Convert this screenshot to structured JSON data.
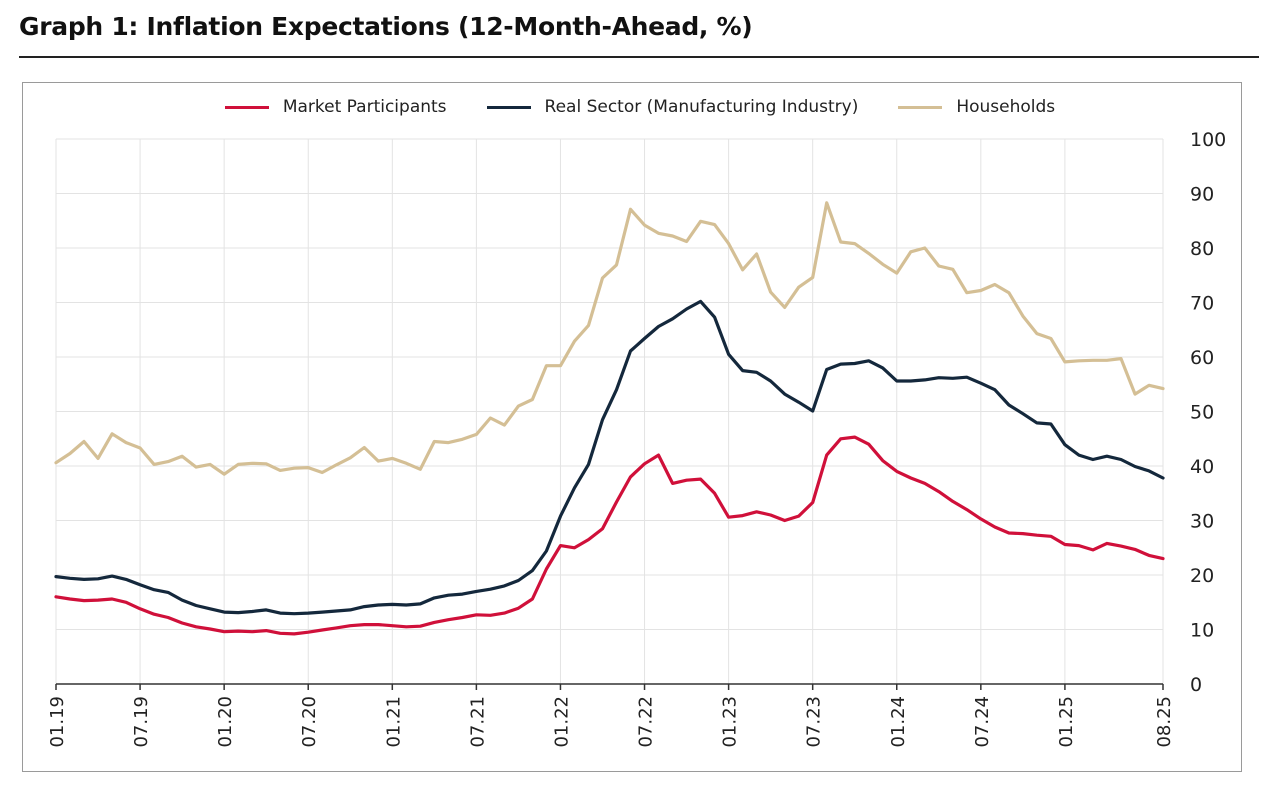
{
  "title": "Graph 1: Inflation Expectations (12-Month-Ahead, %)",
  "chart_data": {
    "type": "line",
    "title": "Graph 1: Inflation Expectations (12-Month-Ahead, %)",
    "xlabel": "",
    "ylabel": "",
    "ylim": [
      0,
      100
    ],
    "yticks": [
      "0",
      "10",
      "20",
      "30",
      "40",
      "50",
      "60",
      "70",
      "80",
      "90",
      "100"
    ],
    "xticks": [
      "01.19",
      "07.19",
      "01.20",
      "07.20",
      "01.21",
      "07.21",
      "01.22",
      "07.22",
      "01.23",
      "07.23",
      "01.24",
      "07.24",
      "01.25",
      "08.25"
    ],
    "grid": true,
    "legend_position": "top-center",
    "series": [
      {
        "name": "Market Participants",
        "color": "#d0103a",
        "values": [
          16.0,
          15.6,
          15.3,
          15.4,
          15.6,
          15.0,
          13.8,
          12.8,
          12.2,
          11.2,
          10.5,
          10.1,
          9.6,
          9.7,
          9.6,
          9.8,
          9.3,
          9.2,
          9.5,
          9.9,
          10.3,
          10.7,
          10.9,
          10.9,
          10.7,
          10.5,
          10.6,
          11.3,
          11.8,
          12.2,
          12.7,
          12.6,
          13.0,
          13.9,
          15.6,
          21.1,
          25.4,
          25.0,
          26.5,
          28.5,
          33.4,
          38.0,
          40.4,
          42.0,
          36.8,
          37.4,
          37.6,
          35.0,
          30.6,
          30.9,
          31.6,
          31.0,
          30.0,
          30.8,
          33.3,
          42.0,
          45.0,
          45.3,
          44.0,
          41.0,
          39.0,
          37.8,
          36.8,
          35.3,
          33.5,
          32.0,
          30.3,
          28.8,
          27.7,
          27.6,
          27.3,
          27.1,
          25.6,
          25.4,
          24.6,
          25.8,
          25.3,
          24.7,
          23.6,
          23.0
        ]
      },
      {
        "name": "Real Sector (Manufacturing Industry)",
        "color": "#14283c",
        "values": [
          19.7,
          19.4,
          19.2,
          19.3,
          19.8,
          19.2,
          18.2,
          17.3,
          16.8,
          15.4,
          14.4,
          13.8,
          13.2,
          13.1,
          13.3,
          13.6,
          13.0,
          12.9,
          13.0,
          13.2,
          13.4,
          13.6,
          14.2,
          14.5,
          14.6,
          14.5,
          14.7,
          15.8,
          16.3,
          16.5,
          17.0,
          17.4,
          18.0,
          19.0,
          20.8,
          24.4,
          30.8,
          36.0,
          40.3,
          48.5,
          54.0,
          61.1,
          63.4,
          65.6,
          67.0,
          68.8,
          70.2,
          67.3,
          60.5,
          57.5,
          57.2,
          55.6,
          53.2,
          51.7,
          50.1,
          57.7,
          58.7,
          58.8,
          59.3,
          58.0,
          55.6,
          55.6,
          55.8,
          56.2,
          56.1,
          56.3,
          55.2,
          54.0,
          51.2,
          49.6,
          47.9,
          47.7,
          43.9,
          42.0,
          41.2,
          41.8,
          41.2,
          39.9,
          39.1,
          37.8
        ]
      },
      {
        "name": "Households",
        "color": "#d4bf95",
        "values": [
          40.6,
          42.3,
          44.5,
          41.4,
          45.9,
          44.3,
          43.3,
          40.3,
          40.8,
          41.8,
          39.8,
          40.3,
          38.5,
          40.3,
          40.5,
          40.4,
          39.2,
          39.6,
          39.7,
          38.8,
          40.2,
          41.5,
          43.4,
          40.9,
          41.4,
          40.5,
          39.4,
          44.5,
          44.3,
          44.9,
          45.8,
          48.8,
          47.5,
          51.0,
          52.2,
          58.4,
          58.4,
          62.9,
          65.8,
          74.5,
          76.9,
          87.1,
          84.2,
          82.7,
          82.2,
          81.2,
          84.9,
          84.3,
          80.8,
          76.0,
          78.9,
          71.9,
          69.1,
          72.8,
          74.6,
          88.3,
          81.1,
          80.8,
          79.0,
          77.0,
          75.4,
          79.3,
          80.0,
          76.7,
          76.1,
          71.8,
          72.2,
          73.3,
          71.8,
          67.5,
          64.3,
          63.4,
          59.1,
          59.3,
          59.4,
          59.4,
          59.7,
          53.2,
          54.8,
          54.2
        ]
      }
    ]
  }
}
